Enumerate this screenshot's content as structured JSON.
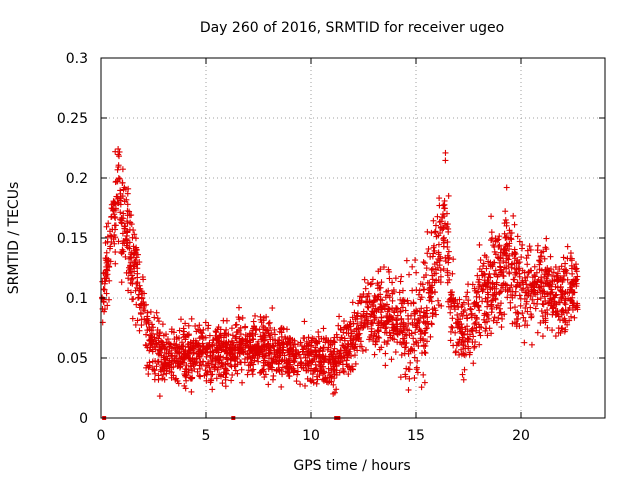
{
  "chart_data": {
    "type": "scatter",
    "title": "Day 260 of 2016, SRMTID for receiver ugeo",
    "xlabel": "GPS time / hours",
    "ylabel": "SRMTID / TECUs",
    "xlim": [
      0,
      24
    ],
    "ylim": [
      0,
      0.3
    ],
    "xticks": [
      0,
      5,
      10,
      15,
      20
    ],
    "xtick_labels": [
      "0",
      "5",
      "10",
      "15",
      "20"
    ],
    "yticks": [
      0,
      0.05,
      0.1,
      0.15,
      0.2,
      0.25,
      0.3
    ],
    "ytick_labels": [
      "0",
      "0.05",
      "0.1",
      "0.15",
      "0.2",
      "0.25",
      "0.3"
    ],
    "grid": true,
    "marker": "+",
    "color": "#e00000",
    "trend": [
      [
        0.0,
        0.095
      ],
      [
        0.3,
        0.13
      ],
      [
        0.6,
        0.16
      ],
      [
        0.8,
        0.19
      ],
      [
        1.1,
        0.165
      ],
      [
        1.5,
        0.13
      ],
      [
        1.9,
        0.1
      ],
      [
        2.3,
        0.065
      ],
      [
        3.0,
        0.05
      ],
      [
        4.0,
        0.052
      ],
      [
        5.0,
        0.055
      ],
      [
        6.0,
        0.055
      ],
      [
        7.0,
        0.06
      ],
      [
        8.0,
        0.058
      ],
      [
        9.0,
        0.055
      ],
      [
        10.0,
        0.05
      ],
      [
        11.0,
        0.045
      ],
      [
        12.0,
        0.065
      ],
      [
        12.5,
        0.085
      ],
      [
        13.5,
        0.09
      ],
      [
        14.5,
        0.075
      ],
      [
        15.0,
        0.08
      ],
      [
        15.5,
        0.085
      ],
      [
        16.1,
        0.14
      ],
      [
        16.4,
        0.16
      ],
      [
        16.7,
        0.1
      ],
      [
        17.0,
        0.07
      ],
      [
        17.5,
        0.075
      ],
      [
        18.0,
        0.1
      ],
      [
        18.5,
        0.11
      ],
      [
        19.0,
        0.12
      ],
      [
        19.3,
        0.14
      ],
      [
        19.6,
        0.12
      ],
      [
        20.0,
        0.11
      ],
      [
        21.0,
        0.11
      ],
      [
        22.0,
        0.1
      ],
      [
        22.7,
        0.11
      ]
    ],
    "spread": [
      [
        0.0,
        0.02
      ],
      [
        1.0,
        0.045
      ],
      [
        2.0,
        0.03
      ],
      [
        3.0,
        0.022
      ],
      [
        11.0,
        0.02
      ],
      [
        12.5,
        0.025
      ],
      [
        16.0,
        0.045
      ],
      [
        17.0,
        0.03
      ],
      [
        19.0,
        0.04
      ],
      [
        22.7,
        0.03
      ]
    ],
    "points_per_hour": 120,
    "x_range": [
      0.05,
      22.7
    ],
    "zero_points": [
      0.15,
      6.3,
      11.2,
      11.3
    ]
  }
}
